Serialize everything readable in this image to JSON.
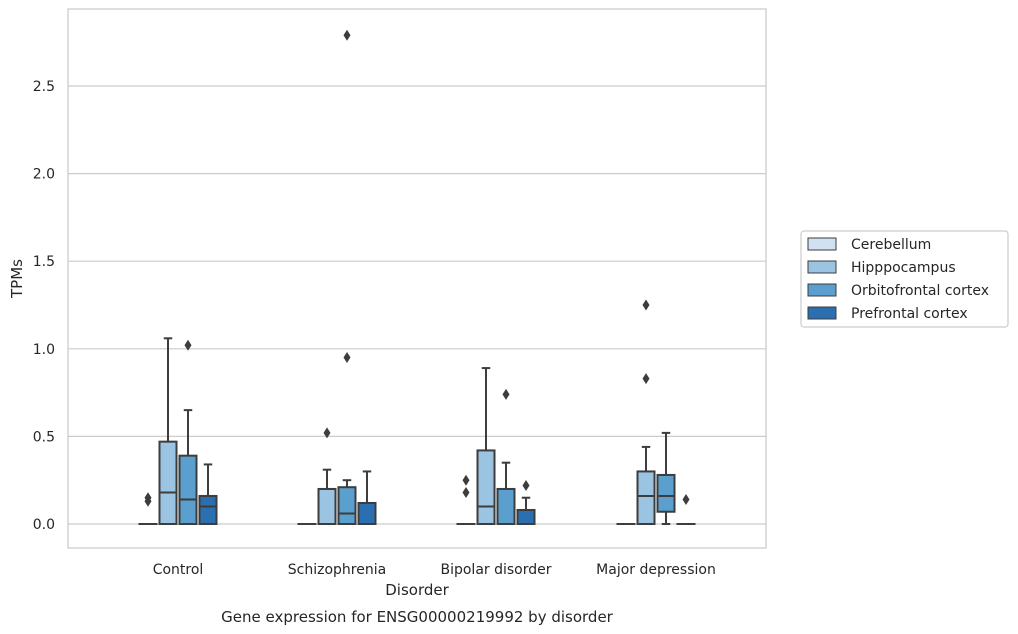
{
  "chart_data": {
    "type": "box",
    "title": "",
    "caption": "Gene expression for ENSG00000219992 by disorder",
    "xlabel": "Disorder",
    "ylabel": "TPMs",
    "ylim": [
      -0.14,
      2.95
    ],
    "yticks": [
      "0.0",
      "0.5",
      "1.0",
      "1.5",
      "2.0",
      "2.5"
    ],
    "grid": "horizontal",
    "legend_position": "right",
    "categories": [
      "Control",
      "Schizophrenia",
      "Bipolar disorder",
      "Major depression"
    ],
    "series": [
      {
        "name": "Cerebellum",
        "color": "#d0e2f2",
        "boxes": [
          {
            "q1": 0,
            "median": 0,
            "q3": 0,
            "whislo": 0,
            "whishi": 0,
            "fliers": [
              0.13,
              0.15
            ]
          },
          {
            "q1": 0,
            "median": 0,
            "q3": 0,
            "whislo": 0,
            "whishi": 0,
            "fliers": []
          },
          {
            "q1": 0,
            "median": 0,
            "q3": 0,
            "whislo": 0,
            "whishi": 0,
            "fliers": [
              0.18,
              0.25
            ]
          },
          {
            "q1": 0,
            "median": 0,
            "q3": 0,
            "whislo": 0,
            "whishi": 0,
            "fliers": []
          }
        ]
      },
      {
        "name": "Hipppocampus",
        "color": "#9ac4e1",
        "boxes": [
          {
            "q1": 0,
            "median": 0.18,
            "q3": 0.47,
            "whislo": 0,
            "whishi": 1.06,
            "fliers": []
          },
          {
            "q1": 0,
            "median": 0.2,
            "q3": 0.2,
            "whislo": 0,
            "whishi": 0.31,
            "fliers": [
              0.52
            ]
          },
          {
            "q1": 0,
            "median": 0.1,
            "q3": 0.42,
            "whislo": 0,
            "whishi": 0.89,
            "fliers": []
          },
          {
            "q1": 0,
            "median": 0.16,
            "q3": 0.3,
            "whislo": 0,
            "whishi": 0.44,
            "fliers": [
              0.83,
              1.25
            ]
          }
        ]
      },
      {
        "name": "Orbitofrontal cortex",
        "color": "#5a9fcd",
        "boxes": [
          {
            "q1": 0,
            "median": 0.14,
            "q3": 0.39,
            "whislo": 0,
            "whishi": 0.65,
            "fliers": [
              1.02
            ]
          },
          {
            "q1": 0,
            "median": 0.06,
            "q3": 0.21,
            "whislo": 0,
            "whishi": 0.25,
            "fliers": [
              0.95,
              2.79
            ]
          },
          {
            "q1": 0,
            "median": 0.2,
            "q3": 0.2,
            "whislo": 0,
            "whishi": 0.35,
            "fliers": [
              0.74
            ]
          },
          {
            "q1": 0.07,
            "median": 0.16,
            "q3": 0.28,
            "whislo": 0,
            "whishi": 0.52,
            "fliers": []
          }
        ]
      },
      {
        "name": "Prefrontal cortex",
        "color": "#2b6fb0",
        "boxes": [
          {
            "q1": 0,
            "median": 0.1,
            "q3": 0.16,
            "whislo": 0,
            "whishi": 0.34,
            "fliers": []
          },
          {
            "q1": 0,
            "median": 0.12,
            "q3": 0.12,
            "whislo": 0,
            "whishi": 0.3,
            "fliers": []
          },
          {
            "q1": 0,
            "median": 0.08,
            "q3": 0.08,
            "whislo": 0,
            "whishi": 0.15,
            "fliers": [
              0.22
            ]
          },
          {
            "q1": 0,
            "median": 0,
            "q3": 0,
            "whislo": 0,
            "whishi": 0,
            "fliers": [
              0.14
            ]
          }
        ]
      }
    ]
  }
}
